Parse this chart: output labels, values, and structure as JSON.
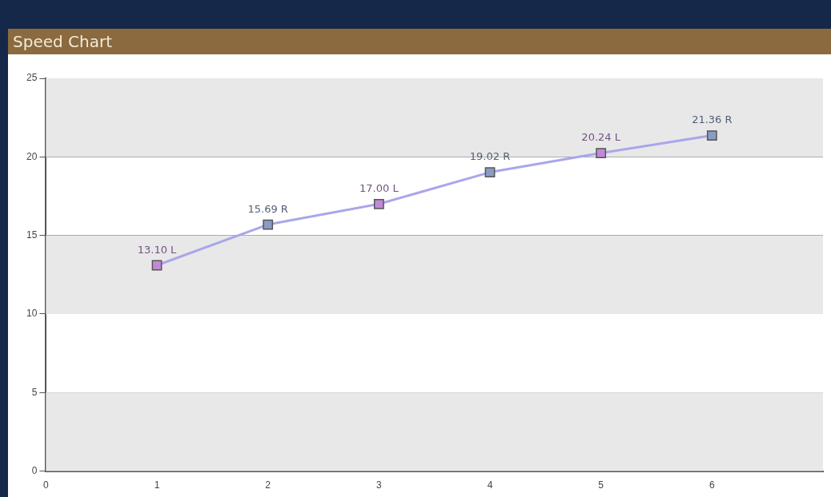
{
  "chart_data": {
    "type": "line",
    "title": "Speed Chart",
    "x": [
      1,
      2,
      3,
      4,
      5,
      6
    ],
    "series": [
      {
        "color": "#a9a6ea",
        "values": [
          13.1,
          15.69,
          17.0,
          19.02,
          20.24,
          21.36
        ],
        "colors": [
          "#c08ad6",
          "#8b9cc4",
          "#c08ad6",
          "#8b9cc4",
          "#c08ad6",
          "#8b9cc4"
        ],
        "value_labels": [
          "13.10 L",
          "15.69 R",
          "17.00 L",
          "19.02 R",
          "20.24 L",
          "21.36 R"
        ]
      }
    ],
    "xlim": [
      0,
      7
    ],
    "xticks": [
      0,
      1,
      2,
      3,
      4,
      5,
      6
    ],
    "ylim": [
      0,
      25
    ],
    "yticks": [
      0,
      5,
      10,
      15,
      20,
      25
    ],
    "grid": "y",
    "legend": false,
    "marker": "square",
    "line_style": "solid"
  }
}
